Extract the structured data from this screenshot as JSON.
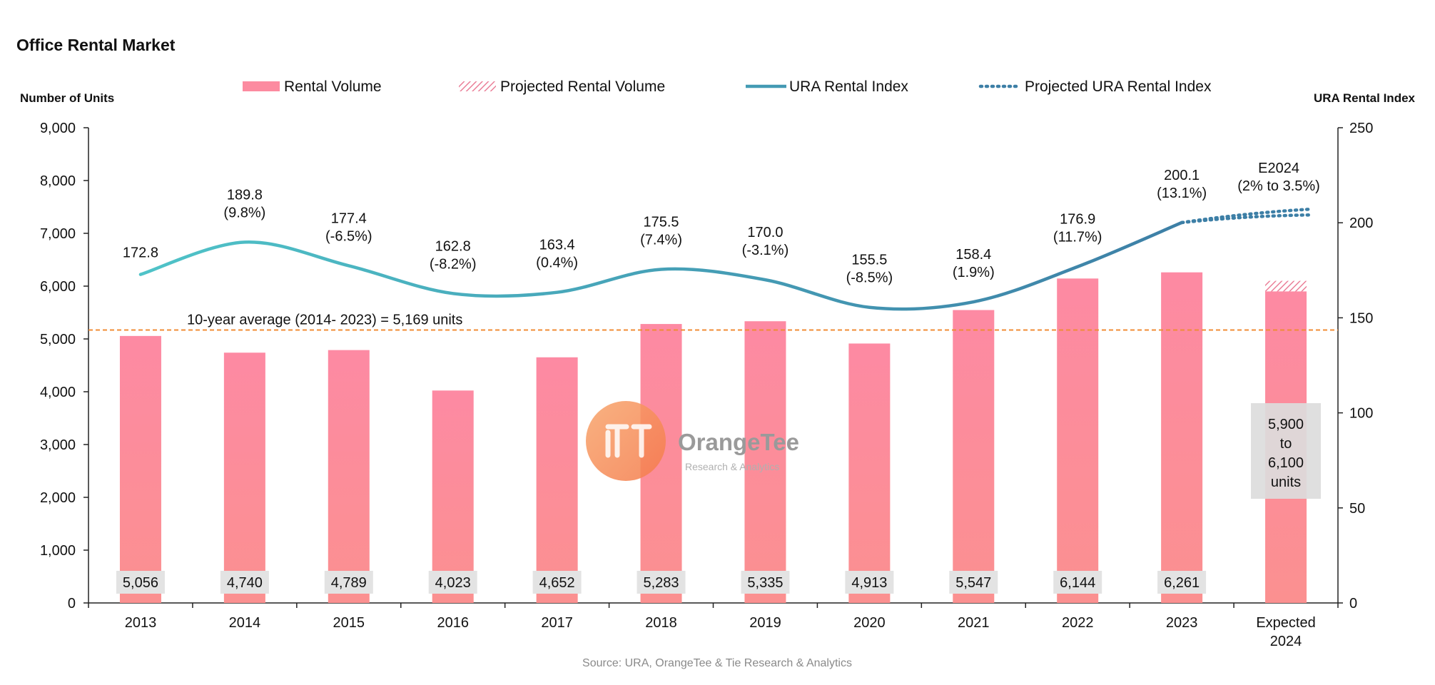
{
  "colors": {
    "bar": "#fc8ba0",
    "bar_bottom": "#fb8e96",
    "line_start": "#4fc3c8",
    "line_end": "#3d7fa6",
    "avg_line": "#f08c36",
    "label_box": "#e3e3e3",
    "projected_box": "#dcdcdc"
  },
  "chart_data": {
    "type": "bar",
    "title": "Office Rental Market",
    "ylabel": "Number of Units",
    "y2label": "URA Rental Index",
    "ylim": [
      0,
      9000
    ],
    "y2lim": [
      0,
      250
    ],
    "yticks": [
      "0",
      "1,000",
      "2,000",
      "3,000",
      "4,000",
      "5,000",
      "6,000",
      "7,000",
      "8,000",
      "9,000"
    ],
    "y2ticks": [
      "0",
      "50",
      "100",
      "150",
      "200",
      "250"
    ],
    "categories": [
      "2013",
      "2014",
      "2015",
      "2016",
      "2017",
      "2018",
      "2019",
      "2020",
      "2021",
      "2022",
      "2023"
    ],
    "projected_category": [
      "Expected",
      "2024"
    ],
    "legend": {
      "position": "top",
      "items": [
        "Rental Volume",
        "Projected Rental Volume",
        "URA Rental Index",
        "Projected URA Rental Index"
      ]
    },
    "series": [
      {
        "name": "Rental Volume",
        "type": "bar",
        "axis": "left",
        "values": [
          5056,
          4740,
          4789,
          4023,
          4652,
          5283,
          5335,
          4913,
          5547,
          6144,
          6261
        ],
        "labels": [
          "5,056",
          "4,740",
          "4,789",
          "4,023",
          "4,652",
          "5,283",
          "5,335",
          "4,913",
          "5,547",
          "6,144",
          "6,261"
        ]
      },
      {
        "name": "Projected Rental Volume",
        "type": "bar",
        "axis": "left",
        "solid_value": 5900,
        "value": 6100,
        "label": [
          "5,900",
          "to",
          "6,100",
          "units"
        ]
      },
      {
        "name": "URA Rental Index",
        "type": "line",
        "axis": "right",
        "values": [
          172.8,
          189.8,
          177.4,
          162.8,
          163.4,
          175.5,
          170.0,
          155.5,
          158.4,
          176.9,
          200.1
        ],
        "labels": [
          "172.8",
          "189.8",
          "177.4",
          "162.8",
          "163.4",
          "175.5",
          "170.0",
          "155.5",
          "158.4",
          "176.9",
          "200.1"
        ],
        "changes": [
          "",
          "(9.8%)",
          "(-6.5%)",
          "(-8.2%)",
          "(0.4%)",
          "(7.4%)",
          "(-3.1%)",
          "(-8.5%)",
          "(1.9%)",
          "(11.7%)",
          "(13.1%)"
        ]
      },
      {
        "name": "Projected URA Rental Index",
        "type": "line",
        "axis": "right",
        "range": [
          204.1,
          207.1
        ],
        "label": [
          "E2024",
          "(2% to 3.5%)"
        ]
      }
    ],
    "average_line": {
      "value": 5169,
      "label": "10-year average (2014- 2023) = 5,169 units"
    },
    "source": "Source: URA, OrangeTee & Tie Research & Analytics"
  },
  "watermark": {
    "name": "OrangeTee",
    "sub": "Research & Analytics"
  }
}
